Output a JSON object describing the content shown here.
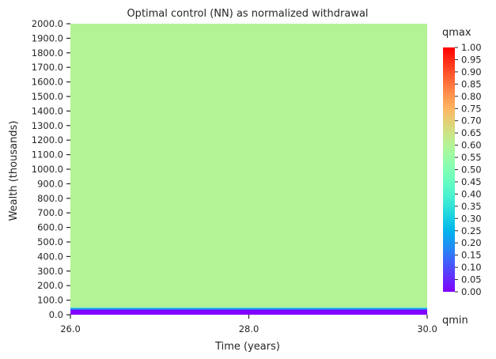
{
  "chart_data": {
    "type": "heatmap",
    "title": "Optimal control (NN) as normalized withdrawal",
    "xlabel": "Time (years)",
    "ylabel": "Wealth (thousands)",
    "xlim": [
      26.0,
      30.0
    ],
    "ylim": [
      0.0,
      2000.0
    ],
    "x_ticks": [
      "26.0",
      "28.0",
      "30.0"
    ],
    "y_ticks": [
      "0.0",
      "100.0",
      "200.0",
      "300.0",
      "400.0",
      "500.0",
      "600.0",
      "700.0",
      "800.0",
      "900.0",
      "1000.0",
      "1100.0",
      "1200.0",
      "1300.0",
      "1400.0",
      "1500.0",
      "1600.0",
      "1700.0",
      "1800.0",
      "1900.0",
      "2000.0"
    ],
    "colormap": "rainbow",
    "colorbar": {
      "top_label": "qmax",
      "bottom_label": "qmin",
      "range": [
        0.0,
        1.0
      ],
      "ticks": [
        "0.00",
        "0.05",
        "0.10",
        "0.15",
        "0.20",
        "0.25",
        "0.30",
        "0.35",
        "0.40",
        "0.45",
        "0.50",
        "0.55",
        "0.60",
        "0.65",
        "0.70",
        "0.75",
        "0.80",
        "0.85",
        "0.90",
        "0.95",
        "1.00"
      ]
    },
    "bands": [
      {
        "wealth_from": 0.0,
        "wealth_to": 35.0,
        "value": 0.0
      },
      {
        "wealth_from": 35.0,
        "wealth_to": 45.0,
        "value": 0.2
      },
      {
        "wealth_from": 45.0,
        "wealth_to": 50.0,
        "value": 0.32
      },
      {
        "wealth_from": 50.0,
        "wealth_to": 2000.0,
        "value": 0.6
      }
    ]
  }
}
